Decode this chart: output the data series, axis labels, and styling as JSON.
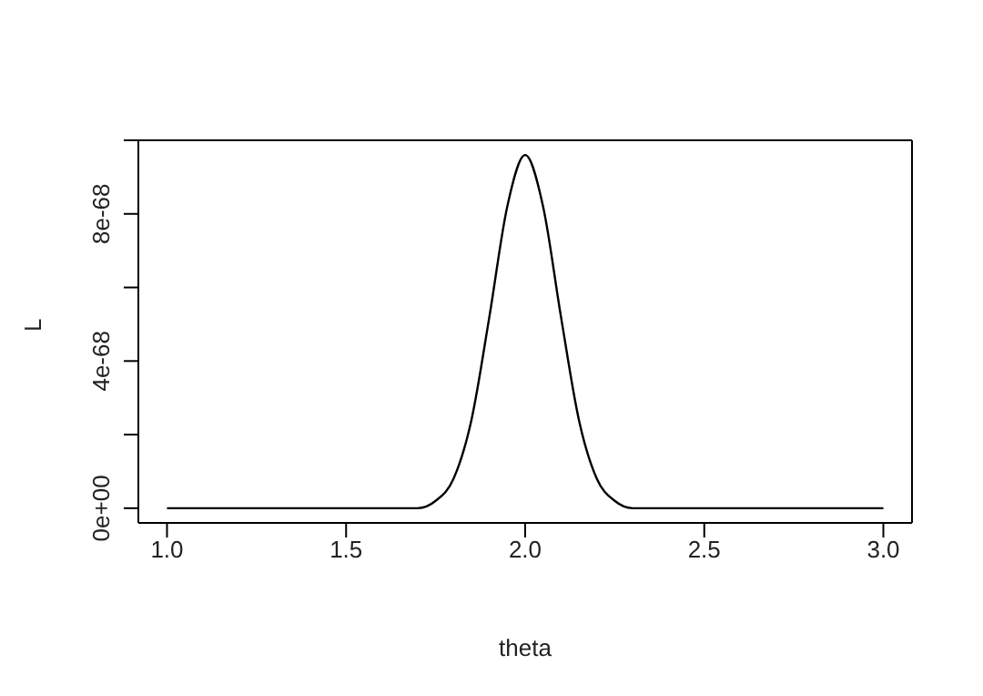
{
  "chart_data": {
    "type": "line",
    "xlabel": "theta",
    "ylabel": "L",
    "x": [
      1.0,
      1.2,
      1.4,
      1.6,
      1.65,
      1.7,
      1.75,
      1.8,
      1.85,
      1.9,
      1.95,
      2.0,
      2.05,
      2.1,
      2.15,
      2.2,
      2.25,
      2.3,
      2.35,
      2.4,
      2.6,
      2.8,
      3.0
    ],
    "series": [
      {
        "color": "#000000",
        "values": [
          0,
          0,
          0,
          0,
          0,
          0,
          2e-69,
          8e-69,
          2.4e-68,
          5.2e-68,
          8.2e-68,
          9.6e-68,
          8.2e-68,
          5.2e-68,
          2.4e-68,
          8e-69,
          2e-69,
          0,
          0,
          0,
          0,
          0,
          0
        ]
      }
    ],
    "xlim": [
      0.92,
      3.08
    ],
    "xticks": [
      {
        "value": 1,
        "label": "1.0"
      },
      {
        "value": 1.5,
        "label": "1.5"
      },
      {
        "value": 2,
        "label": "2.0"
      },
      {
        "value": 2.5,
        "label": "2.5"
      },
      {
        "value": 3,
        "label": "3.0"
      }
    ],
    "ylim": [
      -4e-69,
      1e-67
    ],
    "yticks": [
      {
        "value": 0,
        "label": "0e+00"
      },
      {
        "value": 2e-68,
        "label": null
      },
      {
        "value": 4e-68,
        "label": "4e-68"
      },
      {
        "value": 6e-68,
        "label": null
      },
      {
        "value": 8e-68,
        "label": "8e-68"
      },
      {
        "value": 1e-67,
        "label": null
      }
    ],
    "grid": false,
    "legend": false,
    "marker": "none",
    "line_style": "solid"
  }
}
